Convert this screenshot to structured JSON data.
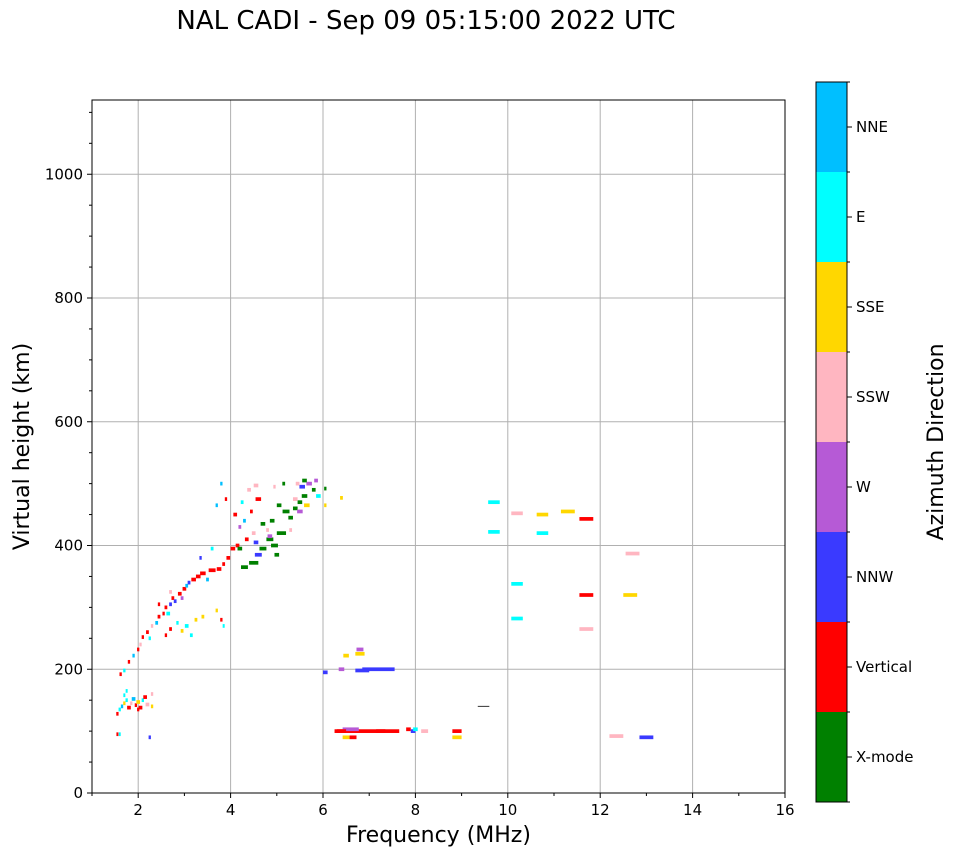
{
  "chart_data": {
    "type": "scatter",
    "title": "NAL CADI - Sep 09 05:15:00 2022 UTC",
    "xlabel": "Frequency (MHz)",
    "ylabel": "Virtual height (km)",
    "xlim": [
      1,
      16
    ],
    "ylim": [
      0,
      1120
    ],
    "xticks": [
      "2",
      "4",
      "6",
      "8",
      "10",
      "12",
      "14",
      "16"
    ],
    "yticks": [
      "0",
      "200",
      "400",
      "600",
      "800",
      "1000"
    ],
    "grid": true,
    "colorbar": {
      "label": "Azimuth Direction",
      "categories": [
        "X-mode",
        "Vertical",
        "NNW",
        "W",
        "SSW",
        "SSE",
        "E",
        "NNE"
      ],
      "colors": [
        "#008000",
        "#ff0000",
        "#3a3aff",
        "#b65ad6",
        "#ffb6c1",
        "#ffd700",
        "#00ffff",
        "#00bfff"
      ]
    },
    "points_format": "[frequency_MHz, height_km, direction_index, width_MHz]",
    "points": [
      [
        1.55,
        128,
        1,
        0.05
      ],
      [
        1.6,
        135,
        6,
        0.05
      ],
      [
        1.65,
        140,
        7,
        0.05
      ],
      [
        1.7,
        145,
        5,
        0.05
      ],
      [
        1.75,
        150,
        6,
        0.05
      ],
      [
        1.8,
        138,
        1,
        0.08
      ],
      [
        1.85,
        145,
        4,
        0.05
      ],
      [
        1.9,
        152,
        7,
        0.08
      ],
      [
        1.95,
        142,
        1,
        0.05
      ],
      [
        2.0,
        147,
        5,
        0.08
      ],
      [
        2.05,
        138,
        1,
        0.08
      ],
      [
        2.1,
        150,
        6,
        0.05
      ],
      [
        2.15,
        155,
        1,
        0.08
      ],
      [
        2.2,
        143,
        4,
        0.08
      ],
      [
        2.3,
        160,
        4,
        0.05
      ],
      [
        1.75,
        165,
        6,
        0.04
      ],
      [
        1.7,
        158,
        6,
        0.04
      ],
      [
        2.0,
        135,
        1,
        0.05
      ],
      [
        2.3,
        140,
        5,
        0.05
      ],
      [
        1.55,
        95,
        1,
        0.03
      ],
      [
        1.6,
        95,
        6,
        0.03
      ],
      [
        2.25,
        90,
        2,
        0.05
      ],
      [
        1.62,
        192,
        1,
        0.05
      ],
      [
        1.7,
        198,
        6,
        0.05
      ],
      [
        1.8,
        212,
        1,
        0.05
      ],
      [
        1.9,
        222,
        7,
        0.05
      ],
      [
        2.0,
        232,
        1,
        0.05
      ],
      [
        2.05,
        240,
        4,
        0.05
      ],
      [
        2.1,
        252,
        1,
        0.05
      ],
      [
        2.2,
        260,
        1,
        0.06
      ],
      [
        2.25,
        250,
        6,
        0.05
      ],
      [
        2.3,
        270,
        4,
        0.05
      ],
      [
        2.4,
        275,
        7,
        0.06
      ],
      [
        2.45,
        285,
        1,
        0.06
      ],
      [
        2.55,
        290,
        1,
        0.05
      ],
      [
        2.6,
        300,
        1,
        0.06
      ],
      [
        2.65,
        290,
        6,
        0.08
      ],
      [
        2.7,
        305,
        2,
        0.06
      ],
      [
        2.75,
        315,
        1,
        0.06
      ],
      [
        2.8,
        310,
        2,
        0.06
      ],
      [
        2.9,
        322,
        1,
        0.08
      ],
      [
        2.95,
        315,
        3,
        0.06
      ],
      [
        3.0,
        330,
        1,
        0.08
      ],
      [
        3.05,
        335,
        7,
        0.06
      ],
      [
        3.1,
        340,
        2,
        0.06
      ],
      [
        3.2,
        345,
        1,
        0.1
      ],
      [
        3.3,
        350,
        1,
        0.1
      ],
      [
        3.4,
        355,
        1,
        0.12
      ],
      [
        3.5,
        345,
        7,
        0.06
      ],
      [
        3.6,
        360,
        1,
        0.15
      ],
      [
        3.75,
        362,
        1,
        0.1
      ],
      [
        3.85,
        370,
        1,
        0.06
      ],
      [
        3.95,
        380,
        1,
        0.08
      ],
      [
        4.05,
        395,
        1,
        0.1
      ],
      [
        4.15,
        400,
        1,
        0.08
      ],
      [
        3.35,
        380,
        2,
        0.05
      ],
      [
        3.6,
        395,
        6,
        0.06
      ],
      [
        2.6,
        255,
        1,
        0.05
      ],
      [
        2.7,
        265,
        1,
        0.06
      ],
      [
        2.85,
        275,
        6,
        0.05
      ],
      [
        2.95,
        262,
        5,
        0.06
      ],
      [
        3.05,
        270,
        6,
        0.08
      ],
      [
        3.15,
        255,
        6,
        0.06
      ],
      [
        3.25,
        280,
        5,
        0.06
      ],
      [
        3.4,
        285,
        5,
        0.06
      ],
      [
        3.7,
        295,
        5,
        0.05
      ],
      [
        3.8,
        280,
        1,
        0.05
      ],
      [
        3.85,
        270,
        6,
        0.04
      ],
      [
        2.45,
        305,
        1,
        0.05
      ],
      [
        2.7,
        325,
        4,
        0.06
      ],
      [
        4.1,
        450,
        1,
        0.08
      ],
      [
        4.2,
        395,
        0,
        0.1
      ],
      [
        4.3,
        365,
        0,
        0.15
      ],
      [
        4.5,
        372,
        0,
        0.2
      ],
      [
        4.6,
        385,
        2,
        0.15
      ],
      [
        4.7,
        395,
        0,
        0.15
      ],
      [
        4.85,
        410,
        0,
        0.15
      ],
      [
        4.95,
        400,
        0,
        0.15
      ],
      [
        5.1,
        420,
        0,
        0.2
      ],
      [
        5.0,
        385,
        0,
        0.1
      ],
      [
        4.9,
        440,
        0,
        0.1
      ],
      [
        5.05,
        465,
        0,
        0.1
      ],
      [
        5.2,
        455,
        0,
        0.15
      ],
      [
        5.3,
        445,
        0,
        0.1
      ],
      [
        5.4,
        460,
        0,
        0.1
      ],
      [
        5.5,
        470,
        0,
        0.1
      ],
      [
        5.6,
        480,
        0,
        0.12
      ],
      [
        5.55,
        495,
        2,
        0.12
      ],
      [
        5.7,
        500,
        3,
        0.12
      ],
      [
        5.8,
        490,
        0,
        0.08
      ],
      [
        5.65,
        465,
        5,
        0.12
      ],
      [
        5.5,
        455,
        3,
        0.12
      ],
      [
        5.4,
        475,
        4,
        0.1
      ],
      [
        5.6,
        505,
        0,
        0.1
      ],
      [
        5.85,
        505,
        3,
        0.08
      ],
      [
        5.9,
        480,
        6,
        0.1
      ],
      [
        6.05,
        492,
        0,
        0.05
      ],
      [
        6.4,
        477,
        5,
        0.06
      ],
      [
        6.05,
        465,
        5,
        0.05
      ],
      [
        3.8,
        500,
        7,
        0.05
      ],
      [
        4.4,
        490,
        4,
        0.08
      ],
      [
        4.55,
        497,
        4,
        0.1
      ],
      [
        4.6,
        475,
        1,
        0.12
      ],
      [
        4.25,
        470,
        6,
        0.06
      ],
      [
        4.45,
        455,
        1,
        0.06
      ],
      [
        4.2,
        430,
        3,
        0.06
      ],
      [
        4.3,
        440,
        7,
        0.06
      ],
      [
        4.5,
        420,
        4,
        0.08
      ],
      [
        4.7,
        435,
        0,
        0.1
      ],
      [
        4.8,
        425,
        4,
        0.06
      ],
      [
        4.35,
        410,
        1,
        0.08
      ],
      [
        4.55,
        405,
        2,
        0.1
      ],
      [
        4.85,
        415,
        3,
        0.1
      ],
      [
        3.7,
        465,
        7,
        0.05
      ],
      [
        3.9,
        475,
        1,
        0.05
      ],
      [
        5.3,
        425,
        4,
        0.06
      ],
      [
        5.15,
        500,
        0,
        0.06
      ],
      [
        5.45,
        500,
        4,
        0.08
      ],
      [
        4.95,
        495,
        4,
        0.05
      ],
      [
        6.8,
        100,
        1,
        1.1
      ],
      [
        7.4,
        100,
        1,
        0.5
      ],
      [
        6.6,
        103,
        3,
        0.35
      ],
      [
        6.4,
        100,
        1,
        0.2
      ],
      [
        7.85,
        103,
        1,
        0.1
      ],
      [
        7.95,
        100,
        2,
        0.1
      ],
      [
        8.0,
        103,
        6,
        0.1
      ],
      [
        8.2,
        100,
        4,
        0.15
      ],
      [
        8.9,
        100,
        1,
        0.2
      ],
      [
        8.9,
        90,
        5,
        0.2
      ],
      [
        6.5,
        90,
        5,
        0.15
      ],
      [
        6.65,
        90,
        1,
        0.15
      ],
      [
        6.05,
        195,
        2,
        0.1
      ],
      [
        6.4,
        200,
        3,
        0.12
      ],
      [
        6.5,
        222,
        5,
        0.12
      ],
      [
        6.8,
        225,
        5,
        0.2
      ],
      [
        6.8,
        232,
        3,
        0.15
      ],
      [
        7.2,
        200,
        2,
        0.7
      ],
      [
        6.85,
        198,
        2,
        0.3
      ],
      [
        9.7,
        470,
        6,
        0.25
      ],
      [
        9.7,
        422,
        6,
        0.25
      ],
      [
        10.2,
        452,
        4,
        0.25
      ],
      [
        10.75,
        450,
        5,
        0.25
      ],
      [
        11.3,
        455,
        5,
        0.3
      ],
      [
        11.7,
        443,
        1,
        0.3
      ],
      [
        10.75,
        420,
        6,
        0.25
      ],
      [
        10.2,
        338,
        6,
        0.25
      ],
      [
        10.2,
        282,
        6,
        0.25
      ],
      [
        11.7,
        320,
        1,
        0.3
      ],
      [
        11.7,
        265,
        4,
        0.3
      ],
      [
        12.7,
        387,
        4,
        0.3
      ],
      [
        12.65,
        320,
        5,
        0.3
      ],
      [
        12.35,
        92,
        4,
        0.3
      ],
      [
        13.0,
        90,
        2,
        0.3
      ]
    ]
  }
}
